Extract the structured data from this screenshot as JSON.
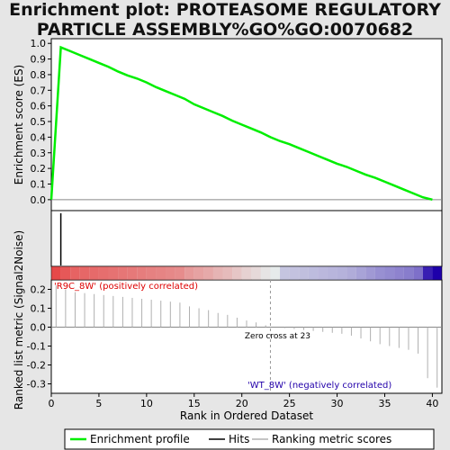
{
  "title_line1": "Enrichment plot: PROTEASOME REGULATORY",
  "title_line2": "PARTICLE ASSEMBLY%GO%GO:0070682",
  "chart_data": {
    "type": "line",
    "title": "Enrichment plot: PROTEASOME REGULATORY PARTICLE ASSEMBLY%GO%GO:0070682",
    "xlabel": "Rank in Ordered Dataset",
    "xlim": [
      0,
      41
    ],
    "xticks": [
      0,
      5,
      10,
      15,
      20,
      25,
      30,
      35,
      40
    ],
    "es_panel": {
      "ylabel": "Enrichment score (ES)",
      "ylim": [
        -0.07,
        1.03
      ],
      "yticks": [
        "0.0",
        "0.1",
        "0.2",
        "0.3",
        "0.4",
        "0.5",
        "0.6",
        "0.7",
        "0.8",
        "0.9",
        "1.0"
      ],
      "series": [
        {
          "name": "Enrichment profile",
          "color": "#00ee00",
          "x": [
            0,
            1,
            2,
            3,
            4,
            5,
            6,
            7,
            8,
            9,
            10,
            11,
            12,
            13,
            14,
            15,
            16,
            17,
            18,
            19,
            20,
            21,
            22,
            23,
            24,
            25,
            26,
            27,
            28,
            29,
            30,
            31,
            32,
            33,
            34,
            35,
            36,
            37,
            38,
            39,
            40
          ],
          "y": [
            0.0,
            0.975,
            0.95,
            0.925,
            0.9,
            0.875,
            0.85,
            0.82,
            0.795,
            0.775,
            0.75,
            0.72,
            0.695,
            0.67,
            0.645,
            0.61,
            0.585,
            0.56,
            0.535,
            0.505,
            0.48,
            0.455,
            0.43,
            0.4,
            0.375,
            0.355,
            0.33,
            0.305,
            0.28,
            0.255,
            0.23,
            0.21,
            0.185,
            0.16,
            0.14,
            0.115,
            0.09,
            0.065,
            0.04,
            0.015,
            0.0
          ]
        }
      ]
    },
    "hits": {
      "name": "Hits",
      "color": "#000000",
      "x": [
        1
      ]
    },
    "metric_panel": {
      "ylabel": "Ranked list metric (Signal2Noise)",
      "ylim": [
        -0.35,
        0.25
      ],
      "yticks": [
        "0.2",
        "0.1",
        "0.0",
        "-0.1",
        "-0.2",
        "-0.3"
      ],
      "series": [
        {
          "name": "Ranking metric scores",
          "color": "#b0b0b0",
          "x": [
            0,
            1,
            2,
            3,
            4,
            5,
            6,
            7,
            8,
            9,
            10,
            11,
            12,
            13,
            14,
            15,
            16,
            17,
            18,
            19,
            20,
            21,
            22,
            23,
            24,
            25,
            26,
            27,
            28,
            29,
            30,
            31,
            32,
            33,
            34,
            35,
            36,
            37,
            38,
            39,
            40
          ],
          "y": [
            0.22,
            0.2,
            0.185,
            0.18,
            0.175,
            0.17,
            0.165,
            0.16,
            0.155,
            0.15,
            0.145,
            0.14,
            0.135,
            0.13,
            0.11,
            0.1,
            0.09,
            0.075,
            0.065,
            0.05,
            0.035,
            0.025,
            0.01,
            0.0,
            -0.005,
            -0.01,
            -0.015,
            -0.02,
            -0.025,
            -0.03,
            -0.035,
            -0.045,
            -0.06,
            -0.075,
            -0.09,
            -0.1,
            -0.11,
            -0.12,
            -0.14,
            -0.27,
            -0.32
          ]
        }
      ],
      "annotations": {
        "positive": "'R9C_8W' (positively correlated)",
        "negative": "'WT_8W' (negatively correlated)",
        "zero_cross": "Zero cross at 23"
      },
      "zero_cross_x": 23
    },
    "legend": {
      "placement": "bottom",
      "entries": [
        "Enrichment profile",
        "Hits",
        "Ranking metric scores"
      ]
    },
    "colors": {
      "positive": "#dd0000",
      "negative": "#2200aa",
      "profile": "#00ee00",
      "background": "#e6e6e6"
    }
  }
}
